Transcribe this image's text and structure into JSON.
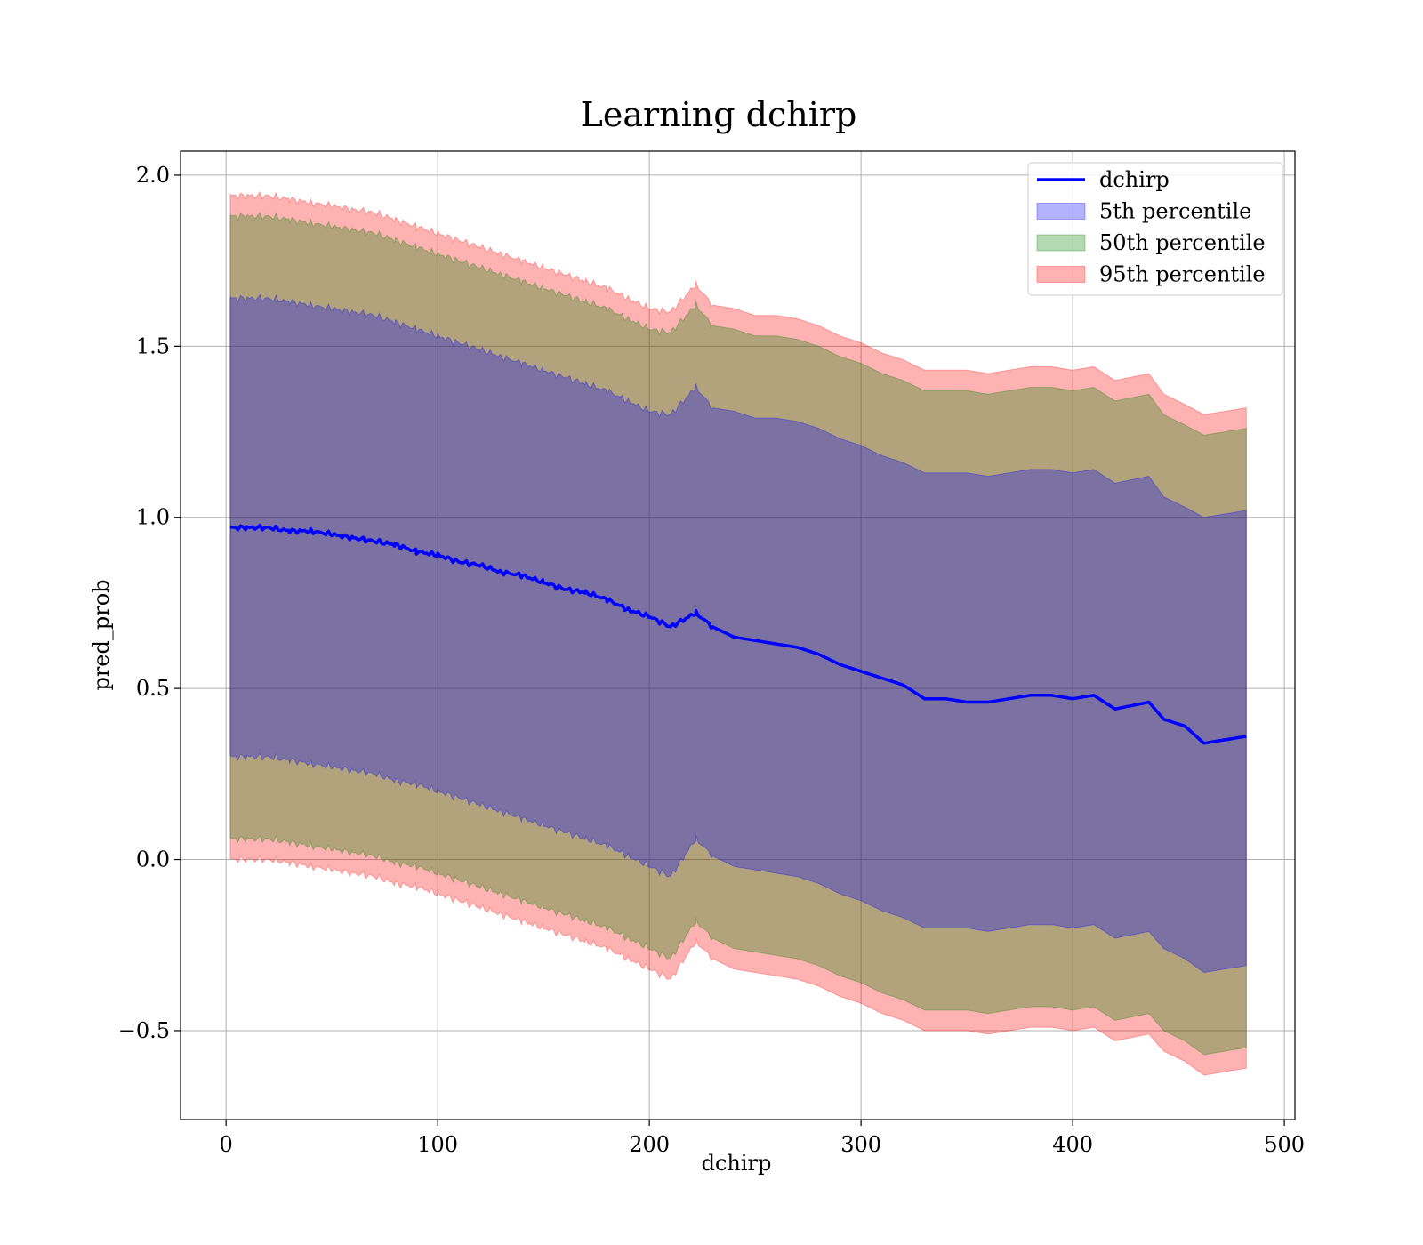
{
  "chart_data": {
    "type": "line",
    "title": "Learning dchirp",
    "xlabel": "dchirp",
    "ylabel": "pred_prob",
    "xlim": [
      -21.5,
      505
    ],
    "ylim": [
      -0.76,
      2.07
    ],
    "xticks": [
      0,
      100,
      200,
      300,
      400,
      500
    ],
    "yticks": [
      -0.5,
      0.0,
      0.5,
      1.0,
      1.5,
      2.0
    ],
    "xtick_labels": [
      "0",
      "100",
      "200",
      "300",
      "400",
      "500"
    ],
    "ytick_labels": [
      "−0.5",
      "0.0",
      "0.5",
      "1.0",
      "1.5",
      "2.0"
    ],
    "grid": true,
    "legend_position": "top-right",
    "legend": [
      "dchirp",
      "5th percentile",
      "50th percentile",
      "95th percentile"
    ],
    "x": [
      2,
      10,
      20,
      30,
      40,
      50,
      60,
      70,
      80,
      90,
      100,
      110,
      120,
      130,
      140,
      150,
      160,
      170,
      180,
      190,
      200,
      210,
      222,
      230,
      240,
      250,
      260,
      270,
      280,
      290,
      300,
      310,
      320,
      330,
      340,
      350,
      360,
      370,
      380,
      390,
      400,
      410,
      420,
      436,
      443,
      453,
      462,
      482
    ],
    "mean": [
      0.97,
      0.97,
      0.97,
      0.96,
      0.96,
      0.95,
      0.94,
      0.93,
      0.92,
      0.9,
      0.89,
      0.87,
      0.86,
      0.84,
      0.83,
      0.81,
      0.79,
      0.78,
      0.76,
      0.73,
      0.71,
      0.68,
      0.72,
      0.68,
      0.65,
      0.64,
      0.63,
      0.62,
      0.6,
      0.57,
      0.55,
      0.53,
      0.51,
      0.47,
      0.47,
      0.46,
      0.46,
      0.47,
      0.48,
      0.48,
      0.47,
      0.48,
      0.44,
      0.46,
      0.41,
      0.39,
      0.34,
      0.36
    ],
    "series": [
      {
        "name": "5th percentile",
        "color": "#0000ff",
        "upper": [
          1.64,
          1.64,
          1.64,
          1.63,
          1.62,
          1.61,
          1.6,
          1.59,
          1.57,
          1.55,
          1.53,
          1.51,
          1.49,
          1.47,
          1.45,
          1.43,
          1.41,
          1.39,
          1.37,
          1.34,
          1.31,
          1.3,
          1.38,
          1.32,
          1.31,
          1.29,
          1.29,
          1.28,
          1.26,
          1.23,
          1.21,
          1.18,
          1.16,
          1.13,
          1.13,
          1.13,
          1.12,
          1.13,
          1.14,
          1.14,
          1.13,
          1.14,
          1.1,
          1.12,
          1.06,
          1.03,
          1.0,
          1.02
        ],
        "lower": [
          0.3,
          0.3,
          0.3,
          0.29,
          0.28,
          0.27,
          0.26,
          0.25,
          0.23,
          0.22,
          0.2,
          0.18,
          0.16,
          0.14,
          0.12,
          0.1,
          0.08,
          0.06,
          0.04,
          0.01,
          -0.02,
          -0.05,
          0.06,
          0.01,
          -0.02,
          -0.03,
          -0.04,
          -0.05,
          -0.07,
          -0.1,
          -0.12,
          -0.15,
          -0.17,
          -0.2,
          -0.2,
          -0.2,
          -0.21,
          -0.2,
          -0.19,
          -0.19,
          -0.2,
          -0.19,
          -0.23,
          -0.21,
          -0.26,
          -0.29,
          -0.33,
          -0.31
        ]
      },
      {
        "name": "50th percentile",
        "color": "#008000",
        "upper": [
          1.88,
          1.88,
          1.88,
          1.87,
          1.86,
          1.85,
          1.84,
          1.83,
          1.81,
          1.79,
          1.77,
          1.75,
          1.73,
          1.71,
          1.69,
          1.67,
          1.65,
          1.63,
          1.61,
          1.58,
          1.55,
          1.54,
          1.62,
          1.56,
          1.55,
          1.53,
          1.53,
          1.52,
          1.5,
          1.47,
          1.45,
          1.42,
          1.4,
          1.37,
          1.37,
          1.37,
          1.36,
          1.37,
          1.38,
          1.38,
          1.37,
          1.38,
          1.34,
          1.36,
          1.3,
          1.27,
          1.24,
          1.26
        ],
        "lower": [
          0.06,
          0.06,
          0.06,
          0.05,
          0.04,
          0.03,
          0.02,
          0.01,
          -0.01,
          -0.02,
          -0.04,
          -0.06,
          -0.08,
          -0.1,
          -0.12,
          -0.14,
          -0.16,
          -0.18,
          -0.2,
          -0.23,
          -0.26,
          -0.29,
          -0.18,
          -0.23,
          -0.26,
          -0.27,
          -0.28,
          -0.29,
          -0.31,
          -0.34,
          -0.36,
          -0.39,
          -0.41,
          -0.44,
          -0.44,
          -0.44,
          -0.45,
          -0.44,
          -0.43,
          -0.43,
          -0.44,
          -0.43,
          -0.47,
          -0.45,
          -0.5,
          -0.53,
          -0.57,
          -0.55
        ]
      },
      {
        "name": "95th percentile",
        "color": "#ff0000",
        "upper": [
          1.94,
          1.94,
          1.94,
          1.93,
          1.92,
          1.91,
          1.9,
          1.89,
          1.87,
          1.85,
          1.83,
          1.81,
          1.79,
          1.77,
          1.75,
          1.73,
          1.71,
          1.69,
          1.67,
          1.64,
          1.61,
          1.6,
          1.68,
          1.62,
          1.61,
          1.59,
          1.59,
          1.58,
          1.56,
          1.53,
          1.51,
          1.48,
          1.46,
          1.43,
          1.43,
          1.43,
          1.42,
          1.43,
          1.44,
          1.44,
          1.43,
          1.44,
          1.4,
          1.42,
          1.36,
          1.33,
          1.3,
          1.32
        ],
        "lower": [
          0.0,
          0.0,
          0.0,
          -0.01,
          -0.02,
          -0.03,
          -0.04,
          -0.05,
          -0.07,
          -0.08,
          -0.1,
          -0.12,
          -0.14,
          -0.16,
          -0.18,
          -0.2,
          -0.22,
          -0.24,
          -0.26,
          -0.29,
          -0.32,
          -0.35,
          -0.24,
          -0.29,
          -0.32,
          -0.33,
          -0.34,
          -0.35,
          -0.37,
          -0.4,
          -0.42,
          -0.45,
          -0.47,
          -0.5,
          -0.5,
          -0.5,
          -0.51,
          -0.5,
          -0.49,
          -0.49,
          -0.5,
          -0.49,
          -0.53,
          -0.51,
          -0.56,
          -0.59,
          -0.63,
          -0.61
        ]
      }
    ],
    "line_color": "#0000ff"
  }
}
